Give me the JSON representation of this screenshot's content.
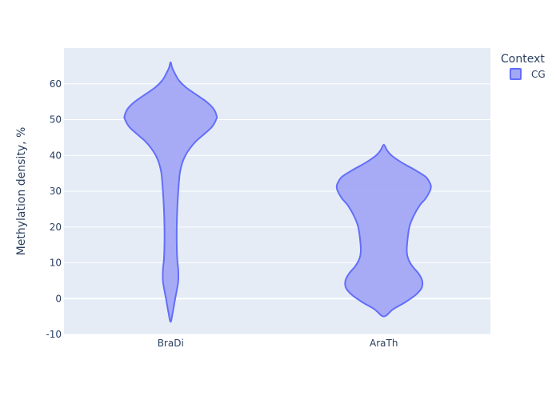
{
  "chart_data": {
    "type": "violin",
    "ylabel": "Methylation density, %",
    "ylim": [
      -10,
      70
    ],
    "yticks": [
      -10,
      0,
      10,
      20,
      30,
      40,
      50,
      60
    ],
    "categories": [
      "BraDi",
      "AraTh"
    ],
    "grid": true,
    "legend": {
      "title": "Context",
      "placement": "top-right",
      "entries": [
        "CG"
      ]
    },
    "series": [
      {
        "name": "CG",
        "color": "#636efa",
        "fill": "#a3a8f6",
        "violins": [
          {
            "category": "BraDi",
            "profile": [
              [
                -6.5,
                0.0
              ],
              [
                -4,
                0.04
              ],
              [
                0,
                0.09
              ],
              [
                3,
                0.13
              ],
              [
                5,
                0.15
              ],
              [
                8,
                0.15
              ],
              [
                11,
                0.13
              ],
              [
                15,
                0.12
              ],
              [
                20,
                0.12
              ],
              [
                25,
                0.13
              ],
              [
                30,
                0.15
              ],
              [
                35,
                0.18
              ],
              [
                38,
                0.23
              ],
              [
                40,
                0.29
              ],
              [
                42,
                0.38
              ],
              [
                44,
                0.5
              ],
              [
                46,
                0.66
              ],
              [
                48,
                0.81
              ],
              [
                50,
                0.89
              ],
              [
                51,
                0.9
              ],
              [
                53,
                0.84
              ],
              [
                55,
                0.7
              ],
              [
                57,
                0.5
              ],
              [
                59,
                0.3
              ],
              [
                61,
                0.16
              ],
              [
                63,
                0.08
              ],
              [
                64.5,
                0.03
              ],
              [
                66,
                0.0
              ]
            ]
          },
          {
            "category": "AraTh",
            "profile": [
              [
                -5,
                0.0
              ],
              [
                -3,
                0.18
              ],
              [
                -1,
                0.42
              ],
              [
                1,
                0.62
              ],
              [
                3,
                0.74
              ],
              [
                5,
                0.75
              ],
              [
                7,
                0.68
              ],
              [
                9,
                0.56
              ],
              [
                11,
                0.48
              ],
              [
                13,
                0.45
              ],
              [
                16,
                0.46
              ],
              [
                20,
                0.5
              ],
              [
                23,
                0.58
              ],
              [
                26,
                0.7
              ],
              [
                28,
                0.82
              ],
              [
                30,
                0.9
              ],
              [
                31,
                0.92
              ],
              [
                32,
                0.91
              ],
              [
                34,
                0.82
              ],
              [
                36,
                0.6
              ],
              [
                38,
                0.35
              ],
              [
                40,
                0.15
              ],
              [
                41.5,
                0.06
              ],
              [
                43,
                0.0
              ]
            ]
          }
        ]
      }
    ]
  }
}
